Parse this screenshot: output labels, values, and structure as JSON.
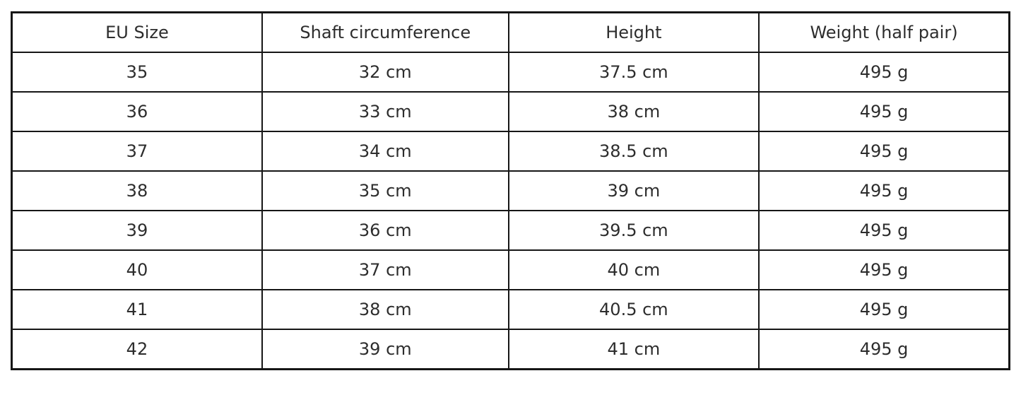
{
  "table": {
    "columns": [
      "EU Size",
      "Shaft circumference",
      "Height",
      "Weight (half pair)"
    ],
    "rows": [
      [
        "35",
        "32 cm",
        "37.5 cm",
        "495 g"
      ],
      [
        "36",
        "33 cm",
        "38 cm",
        "495 g"
      ],
      [
        "37",
        "34 cm",
        "38.5 cm",
        "495 g"
      ],
      [
        "38",
        "35 cm",
        "39 cm",
        "495 g"
      ],
      [
        "39",
        "36 cm",
        "39.5 cm",
        "495 g"
      ],
      [
        "40",
        "37 cm",
        "40 cm",
        "495 g"
      ],
      [
        "41",
        "38 cm",
        "40.5 cm",
        "495 g"
      ],
      [
        "42",
        "39 cm",
        "41 cm",
        "495 g"
      ]
    ],
    "colors": {
      "border": "#161616",
      "text": "#2d2d2d",
      "background": "#ffffff"
    }
  }
}
